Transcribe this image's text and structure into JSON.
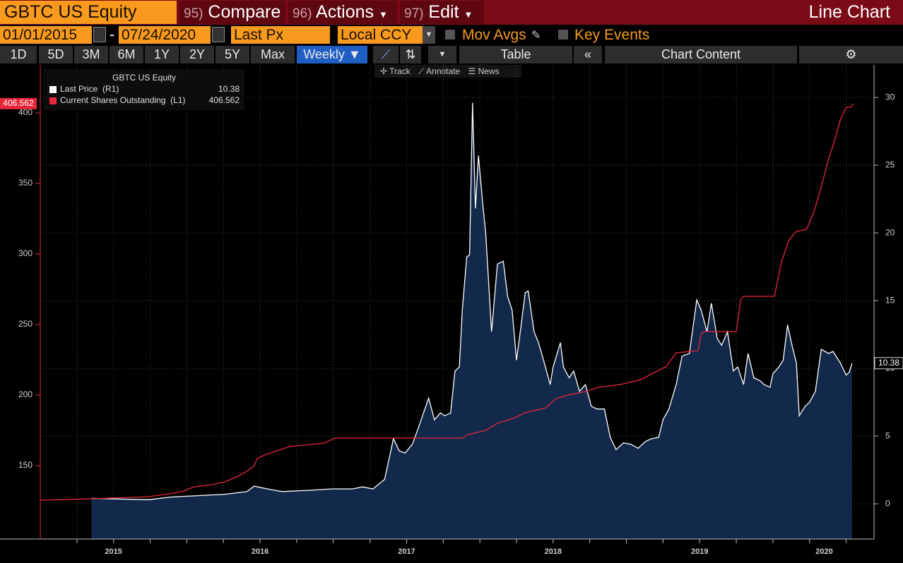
{
  "header": {
    "security": "GBTC US Equity",
    "menus": [
      {
        "num": "95)",
        "label": "Compare"
      },
      {
        "num": "96)",
        "label": "Actions"
      },
      {
        "num": "97)",
        "label": "Edit"
      }
    ],
    "view": "Line Chart"
  },
  "controls": {
    "start_date": "01/01/2015",
    "date_separator": "-",
    "end_date": "07/24/2020",
    "field": "Last Px",
    "currency": "Local CCY",
    "checkboxes": [
      "Mov Avgs",
      "Key Events"
    ]
  },
  "periods": [
    "1D",
    "5D",
    "3M",
    "6M",
    "1Y",
    "2Y",
    "5Y",
    "Max"
  ],
  "frequency": "Weekly",
  "table": "Table",
  "chart_content": "Chart Content",
  "chart_tools": [
    "Track",
    "Annotate",
    "News"
  ],
  "chart_data": {
    "type": "line",
    "title": "GBTC US Equity",
    "xlim": [
      2015.0,
      2020.69
    ],
    "xticks": [
      {
        "value": 2015.5,
        "label": "2015"
      },
      {
        "value": 2016.5,
        "label": "2016"
      },
      {
        "value": 2017.5,
        "label": "2017"
      },
      {
        "value": 2018.5,
        "label": "2018"
      },
      {
        "value": 2019.5,
        "label": "2019"
      },
      {
        "value": 2020.35,
        "label": "2020"
      }
    ],
    "xgrid": [
      2015.25,
      2015.5,
      2015.75,
      2016,
      2016.25,
      2016.5,
      2016.75,
      2017,
      2017.25,
      2017.5,
      2017.75,
      2018,
      2018.25,
      2018.5,
      2018.75,
      2019,
      2019.25,
      2019.5,
      2019.75,
      2020,
      2020.25,
      2020.5
    ],
    "ylim": [
      98,
      434
    ],
    "yticks": [
      150,
      200,
      250,
      300,
      350,
      400
    ],
    "y2lim": [
      -2.6,
      32.4
    ],
    "y2ticks": [
      0,
      5,
      10,
      15,
      20,
      25,
      30
    ],
    "grid": true,
    "series": [
      {
        "name": "Last Price  (R1)",
        "color": "#ffffff",
        "fill": "#13294b",
        "axis": "y2",
        "x": [
          2015.35,
          2015.74,
          2015.89,
          2016.07,
          2016.26,
          2016.41,
          2016.46,
          2016.55,
          2016.65,
          2016.84,
          2016.99,
          2017.13,
          2017.2,
          2017.27,
          2017.35,
          2017.38,
          2017.41,
          2017.45,
          2017.49,
          2017.54,
          2017.59,
          2017.65,
          2017.69,
          2017.73,
          2017.76,
          2017.8,
          2017.83,
          2017.86,
          2017.88,
          2017.91,
          2017.93,
          2017.95,
          2017.97,
          2017.99,
          2018.02,
          2018.04,
          2018.08,
          2018.12,
          2018.16,
          2018.19,
          2018.22,
          2018.25,
          2018.27,
          2018.31,
          2018.33,
          2018.37,
          2018.4,
          2018.44,
          2018.48,
          2018.5,
          2018.55,
          2018.57,
          2018.61,
          2018.64,
          2018.68,
          2018.72,
          2018.76,
          2018.8,
          2018.85,
          2018.89,
          2018.93,
          2018.98,
          2019.03,
          2019.08,
          2019.13,
          2019.17,
          2019.22,
          2019.25,
          2019.29,
          2019.34,
          2019.38,
          2019.43,
          2019.48,
          2019.51,
          2019.55,
          2019.58,
          2019.62,
          2019.65,
          2019.69,
          2019.73,
          2019.76,
          2019.8,
          2019.83,
          2019.87,
          2019.91,
          2019.94,
          2019.98,
          2020.0,
          2020.04,
          2020.07,
          2020.1,
          2020.13,
          2020.16,
          2020.18,
          2020.22,
          2020.25,
          2020.29,
          2020.33,
          2020.38,
          2020.41,
          2020.46,
          2020.5,
          2020.52,
          2020.54
        ],
        "values": [
          0.4,
          0.3,
          0.5,
          0.6,
          0.7,
          0.9,
          1.3,
          1.1,
          0.9,
          1.0,
          1.1,
          1.1,
          1.25,
          1.1,
          1.8,
          3.3,
          4.8,
          3.9,
          3.75,
          4.4,
          5.9,
          7.8,
          6.2,
          6.7,
          6.5,
          6.7,
          9.8,
          10.1,
          14.3,
          18.2,
          18.4,
          29.6,
          21.8,
          25.7,
          22.1,
          20.0,
          12.7,
          17.7,
          17.9,
          15.3,
          14.3,
          10.6,
          12.2,
          15.6,
          15.7,
          12.7,
          11.9,
          10.4,
          8.8,
          10.1,
          11.9,
          10.1,
          9.3,
          9.8,
          8.3,
          8.8,
          7.2,
          7.0,
          7.0,
          4.9,
          4.0,
          4.5,
          4.4,
          4.1,
          4.6,
          4.8,
          4.9,
          6.2,
          7.0,
          8.8,
          10.9,
          11.1,
          15.05,
          14.3,
          12.7,
          14.8,
          12.2,
          11.7,
          12.7,
          9.8,
          10.1,
          8.8,
          11.1,
          9.3,
          9.1,
          8.8,
          8.6,
          9.6,
          10.1,
          10.6,
          13.2,
          11.7,
          10.4,
          6.5,
          7.2,
          7.5,
          8.3,
          11.4,
          11.1,
          11.25,
          10.4,
          9.5,
          9.7,
          10.38
        ]
      },
      {
        "name": "Current Shares Outstanding  (L1)",
        "color": "#e8263b",
        "axis": "y",
        "x": [
          2015.0,
          2015.35,
          2015.74,
          2015.88,
          2015.98,
          2016.05,
          2016.17,
          2016.26,
          2016.34,
          2016.41,
          2016.46,
          2016.48,
          2016.53,
          2016.63,
          2016.7,
          2016.84,
          2016.94,
          2017.01,
          2017.13,
          2017.42,
          2017.88,
          2017.92,
          2018.04,
          2018.12,
          2018.24,
          2018.31,
          2018.45,
          2018.52,
          2018.6,
          2018.72,
          2018.81,
          2018.96,
          2019.1,
          2019.2,
          2019.27,
          2019.34,
          2019.49,
          2019.51,
          2019.53,
          2019.75,
          2019.78,
          2019.8,
          2020.01,
          2020.04,
          2020.06,
          2020.11,
          2020.16,
          2020.23,
          2020.28,
          2020.33,
          2020.38,
          2020.42,
          2020.46,
          2020.5,
          2020.53,
          2020.55
        ],
        "values": [
          125.5,
          126.5,
          128,
          130,
          132,
          135,
          136.5,
          138.5,
          142,
          146,
          150,
          155,
          157.5,
          161,
          163.5,
          165,
          166,
          169.5,
          169.5,
          169.5,
          169.5,
          172,
          175,
          180,
          184,
          187.5,
          191,
          197.5,
          200,
          202.5,
          205.5,
          207.5,
          211,
          216.5,
          220,
          230,
          231.5,
          243.5,
          245,
          245,
          267.5,
          270,
          270,
          285,
          295,
          310,
          316,
          317.5,
          330,
          347.5,
          367.5,
          380,
          395,
          404,
          404,
          406.562
        ]
      }
    ]
  }
}
